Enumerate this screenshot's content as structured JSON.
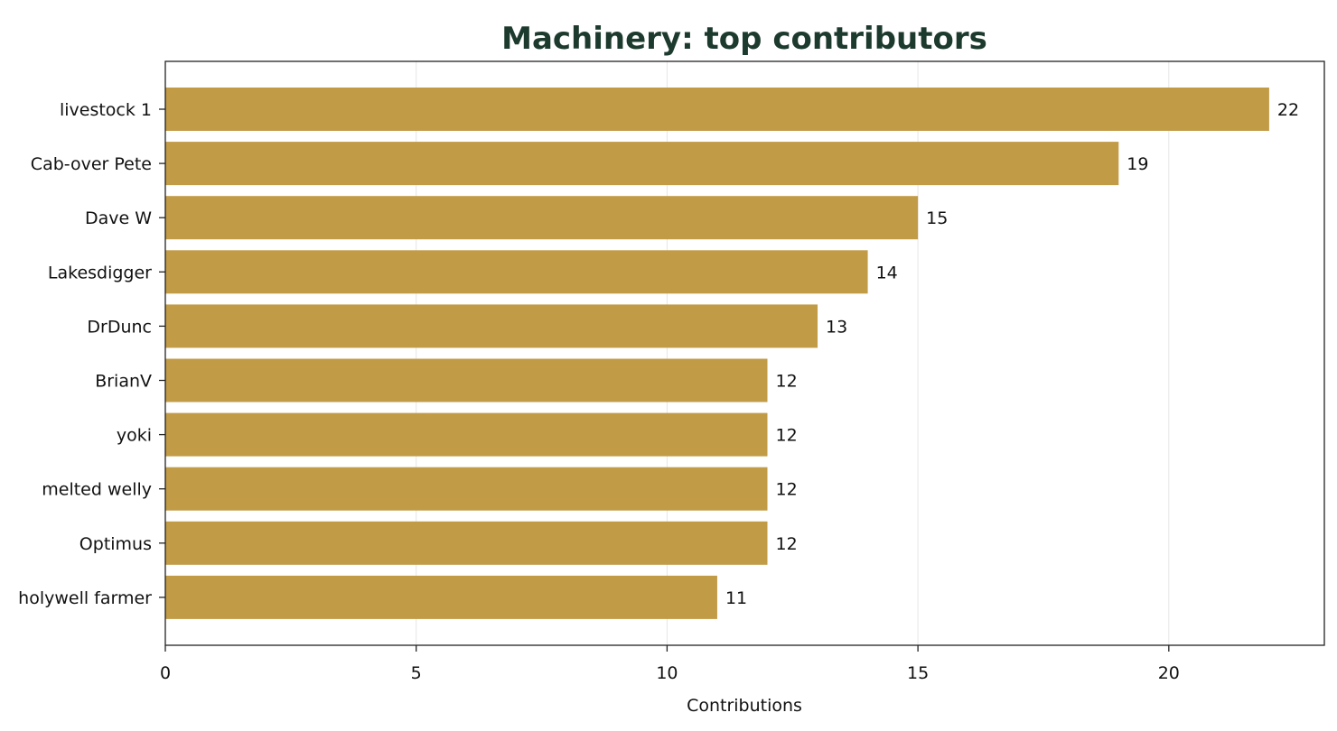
{
  "chart_data": {
    "type": "bar",
    "orientation": "horizontal",
    "title": "Machinery: top contributors",
    "xlabel": "Contributions",
    "ylabel": "",
    "categories": [
      "livestock 1",
      "Cab-over Pete",
      "Dave W",
      "Lakesdigger",
      "DrDunc",
      "BrianV",
      "yoki",
      "melted welly",
      "Optimus",
      "holywell farmer"
    ],
    "values": [
      22,
      19,
      15,
      14,
      13,
      12,
      12,
      12,
      12,
      11
    ],
    "xlim": [
      0,
      23.1
    ],
    "xticks": [
      0,
      5,
      10,
      15,
      20
    ],
    "grid": "vertical",
    "bar_color": "#c29b47",
    "title_color": "#1d3a2e"
  }
}
